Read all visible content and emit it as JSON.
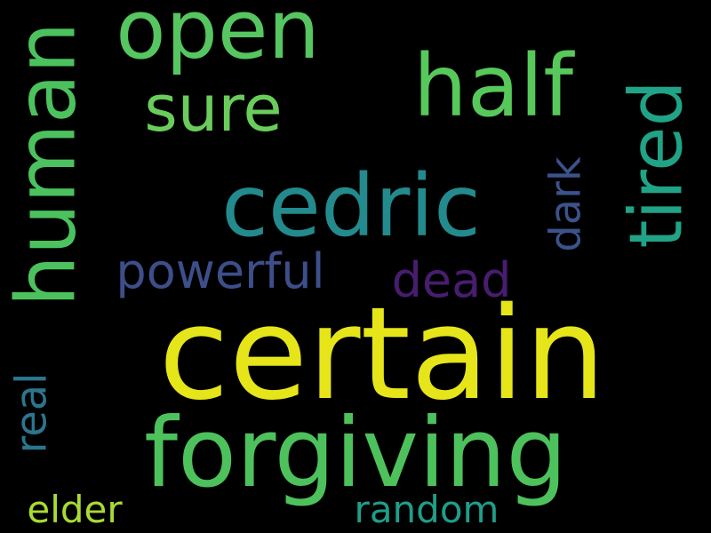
{
  "background_color": "#000000",
  "words": [
    {
      "text": "certain",
      "color": "#e6e51a",
      "orientation": "horizontal"
    },
    {
      "text": "forgiving",
      "color": "#4dc25c",
      "orientation": "horizontal"
    },
    {
      "text": "cedric",
      "color": "#238a8d",
      "orientation": "horizontal"
    },
    {
      "text": "half",
      "color": "#57c95a",
      "orientation": "horizontal"
    },
    {
      "text": "open",
      "color": "#55c660",
      "orientation": "horizontal"
    },
    {
      "text": "human",
      "color": "#4cc25e",
      "orientation": "vertical"
    },
    {
      "text": "tired",
      "color": "#20a386",
      "orientation": "vertical"
    },
    {
      "text": "sure",
      "color": "#6acd5b",
      "orientation": "horizontal"
    },
    {
      "text": "powerful",
      "color": "#3d4e8a",
      "orientation": "horizontal"
    },
    {
      "text": "dead",
      "color": "#481d6f",
      "orientation": "horizontal"
    },
    {
      "text": "dark",
      "color": "#3b528b",
      "orientation": "vertical"
    },
    {
      "text": "real",
      "color": "#2b758e",
      "orientation": "vertical"
    },
    {
      "text": "elder",
      "color": "#a8db34",
      "orientation": "horizontal"
    },
    {
      "text": "random",
      "color": "#1f9e89",
      "orientation": "horizontal"
    }
  ]
}
